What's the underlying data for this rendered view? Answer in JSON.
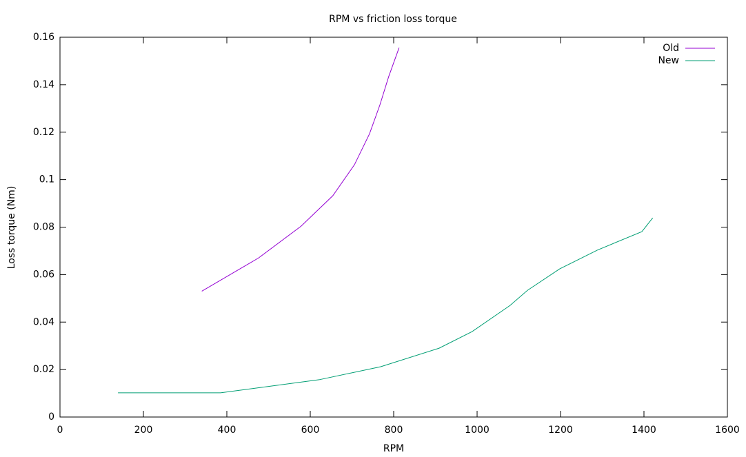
{
  "chart_data": {
    "type": "line",
    "title": "RPM vs friction loss torque",
    "x_label": "RPM",
    "y_label": "Loss torque (Nm)",
    "series": [
      {
        "name": "Old",
        "color": "#9400d3",
        "x": [
          340,
          476,
          578,
          654,
          706,
          742,
          767,
          788,
          813
        ],
        "values": [
          0.053,
          0.067,
          0.0804,
          0.0932,
          0.1063,
          0.1193,
          0.1315,
          0.1434,
          0.1556
        ]
      },
      {
        "name": "New",
        "color": "#009e73",
        "x": [
          139,
          385,
          621,
          769,
          909,
          988,
          1079,
          1121,
          1198,
          1288,
          1395,
          1421
        ],
        "values": [
          0.0102,
          0.0102,
          0.0157,
          0.0212,
          0.029,
          0.036,
          0.047,
          0.0534,
          0.0624,
          0.0703,
          0.0781,
          0.0839
        ]
      }
    ],
    "xlim": [
      0,
      1600
    ],
    "xticks": [
      0,
      200,
      400,
      600,
      800,
      1000,
      1200,
      1400,
      1600
    ],
    "ylim": [
      0,
      0.16
    ],
    "yticks": [
      0,
      0.02,
      0.04,
      0.06,
      0.08,
      0.1,
      0.12,
      0.14,
      0.16
    ],
    "legend": "top-right",
    "grid": false
  }
}
